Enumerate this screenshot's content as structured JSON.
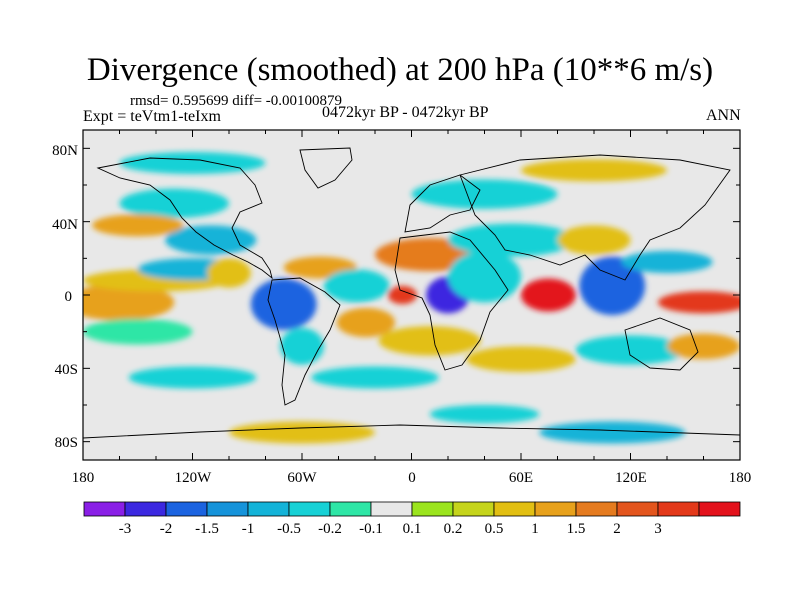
{
  "header": {
    "title": "Divergence (smoothed) at 200 hPa (10**6 m/s)",
    "stats": "rmsd= 0.595699 diff= -0.00100879",
    "experiment": "Expt = teVtm1-teIxm",
    "period": "0472kyr BP - 0472kyr BP",
    "season": "ANN"
  },
  "axes": {
    "y_ticks": [
      "80N",
      "40N",
      "0",
      "40S",
      "80S"
    ],
    "x_ticks": [
      "180",
      "120W",
      "60W",
      "0",
      "60E",
      "120E",
      "180"
    ]
  },
  "colorbar": {
    "colors": [
      "#8a1fe6",
      "#3c28e0",
      "#1b63e0",
      "#1593da",
      "#13b3d8",
      "#17d1d6",
      "#2ee6a6",
      "#e8e8e8",
      "#9be41e",
      "#c5d41b",
      "#e2bf12",
      "#e7a11b",
      "#e57b1f",
      "#e3551d",
      "#e3391a",
      "#e3121c"
    ],
    "labels": [
      "-3",
      "-2",
      "-1.5",
      "-1",
      "-0.5",
      "-0.2",
      "-0.1",
      "0.1",
      "0.2",
      "0.5",
      "1",
      "1.5",
      "2",
      "3"
    ]
  },
  "map_fields": [
    {
      "lon": -172,
      "lat": -4,
      "rx": 22,
      "ry": 7,
      "level": 14
    },
    {
      "lon": -160,
      "lat": -4,
      "rx": 30,
      "ry": 10,
      "level": 11
    },
    {
      "lon": -140,
      "lat": 8,
      "rx": 40,
      "ry": 6,
      "level": 10
    },
    {
      "lon": -150,
      "lat": -20,
      "rx": 30,
      "ry": 7,
      "level": 6
    },
    {
      "lon": -120,
      "lat": 14,
      "rx": 30,
      "ry": 6,
      "level": 4
    },
    {
      "lon": -110,
      "lat": 30,
      "rx": 25,
      "ry": 8,
      "level": 4
    },
    {
      "lon": -130,
      "lat": 50,
      "rx": 30,
      "ry": 8,
      "level": 5
    },
    {
      "lon": -150,
      "lat": 38,
      "rx": 25,
      "ry": 6,
      "level": 11
    },
    {
      "lon": -100,
      "lat": 12,
      "rx": 12,
      "ry": 8,
      "level": 10
    },
    {
      "lon": -70,
      "lat": -5,
      "rx": 18,
      "ry": 14,
      "level": 2
    },
    {
      "lon": -60,
      "lat": -28,
      "rx": 12,
      "ry": 10,
      "level": 5
    },
    {
      "lon": -50,
      "lat": 15,
      "rx": 20,
      "ry": 6,
      "level": 11
    },
    {
      "lon": -30,
      "lat": 5,
      "rx": 18,
      "ry": 9,
      "level": 5
    },
    {
      "lon": -5,
      "lat": 0,
      "rx": 8,
      "ry": 5,
      "level": 14
    },
    {
      "lon": -25,
      "lat": -15,
      "rx": 16,
      "ry": 8,
      "level": 11
    },
    {
      "lon": 10,
      "lat": -25,
      "rx": 28,
      "ry": 8,
      "level": 10
    },
    {
      "lon": 20,
      "lat": 0,
      "rx": 12,
      "ry": 10,
      "level": 1
    },
    {
      "lon": 10,
      "lat": 22,
      "rx": 30,
      "ry": 9,
      "level": 12
    },
    {
      "lon": 40,
      "lat": 10,
      "rx": 20,
      "ry": 14,
      "level": 5
    },
    {
      "lon": 55,
      "lat": 30,
      "rx": 35,
      "ry": 9,
      "level": 5
    },
    {
      "lon": 75,
      "lat": 0,
      "rx": 15,
      "ry": 9,
      "level": 15
    },
    {
      "lon": 60,
      "lat": -35,
      "rx": 30,
      "ry": 7,
      "level": 10
    },
    {
      "lon": 110,
      "lat": 5,
      "rx": 18,
      "ry": 16,
      "level": 2
    },
    {
      "lon": 100,
      "lat": 30,
      "rx": 20,
      "ry": 8,
      "level": 10
    },
    {
      "lon": 140,
      "lat": 18,
      "rx": 25,
      "ry": 6,
      "level": 4
    },
    {
      "lon": 160,
      "lat": -4,
      "rx": 25,
      "ry": 6,
      "level": 14
    },
    {
      "lon": 120,
      "lat": -30,
      "rx": 30,
      "ry": 8,
      "level": 5
    },
    {
      "lon": 160,
      "lat": -28,
      "rx": 20,
      "ry": 7,
      "level": 11
    },
    {
      "lon": -120,
      "lat": -45,
      "rx": 35,
      "ry": 6,
      "level": 5
    },
    {
      "lon": -20,
      "lat": -45,
      "rx": 35,
      "ry": 6,
      "level": 5
    },
    {
      "lon": 40,
      "lat": 55,
      "rx": 40,
      "ry": 8,
      "level": 5
    },
    {
      "lon": -120,
      "lat": 72,
      "rx": 40,
      "ry": 6,
      "level": 5
    },
    {
      "lon": 100,
      "lat": 68,
      "rx": 40,
      "ry": 6,
      "level": 10
    },
    {
      "lon": -60,
      "lat": -75,
      "rx": 40,
      "ry": 6,
      "level": 10
    },
    {
      "lon": 110,
      "lat": -75,
      "rx": 40,
      "ry": 6,
      "level": 4
    },
    {
      "lon": 40,
      "lat": -65,
      "rx": 30,
      "ry": 5,
      "level": 5
    }
  ]
}
